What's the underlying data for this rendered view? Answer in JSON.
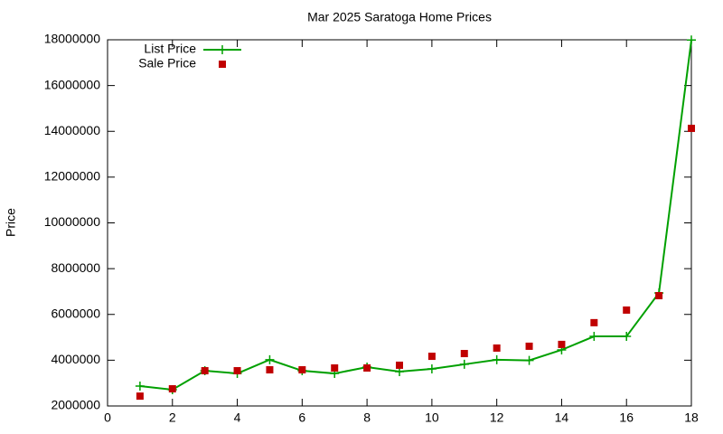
{
  "chart_data": {
    "type": "line",
    "title": "Mar 2025 Saratoga Home Prices",
    "ylabel": "Price",
    "x": [
      1,
      2,
      3,
      4,
      5,
      6,
      7,
      8,
      9,
      10,
      11,
      12,
      13,
      14,
      15,
      16,
      17,
      18
    ],
    "series": [
      {
        "name": "List Price",
        "color": "#00a000",
        "style": "linespoints",
        "values": [
          2870000,
          2710000,
          3540000,
          3420000,
          4020000,
          3540000,
          3420000,
          3700000,
          3500000,
          3620000,
          3820000,
          4020000,
          3990000,
          4450000,
          5040000,
          5040000,
          6940000,
          17990000
        ]
      },
      {
        "name": "Sale Price",
        "color": "#c00000",
        "style": "points",
        "values": [
          2430000,
          2750000,
          3540000,
          3540000,
          3580000,
          3580000,
          3660000,
          3660000,
          3780000,
          4170000,
          4290000,
          4530000,
          4610000,
          4690000,
          5640000,
          6190000,
          6820000,
          14130000
        ]
      }
    ],
    "xlim": [
      0,
      18
    ],
    "xticks": [
      0,
      2,
      4,
      6,
      8,
      10,
      12,
      14,
      16,
      18
    ],
    "ylim": [
      2000000,
      18000000
    ],
    "yticks": [
      2000000,
      4000000,
      6000000,
      8000000,
      10000000,
      12000000,
      14000000,
      16000000,
      18000000
    ],
    "legend": "top-left"
  }
}
